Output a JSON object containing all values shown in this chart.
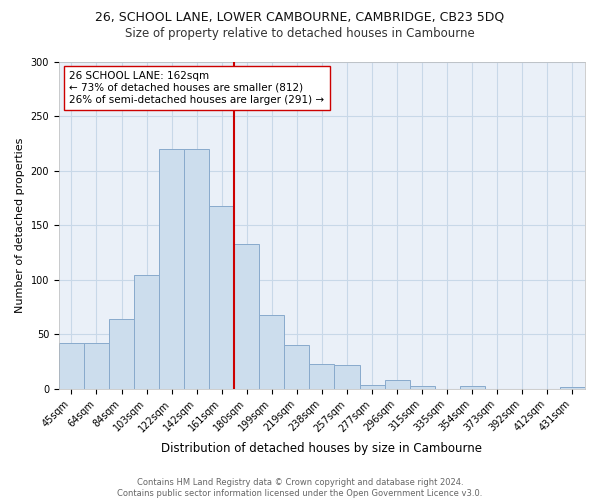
{
  "title1": "26, SCHOOL LANE, LOWER CAMBOURNE, CAMBRIDGE, CB23 5DQ",
  "title2": "Size of property relative to detached houses in Cambourne",
  "xlabel": "Distribution of detached houses by size in Cambourne",
  "ylabel": "Number of detached properties",
  "categories": [
    "45sqm",
    "64sqm",
    "84sqm",
    "103sqm",
    "122sqm",
    "142sqm",
    "161sqm",
    "180sqm",
    "199sqm",
    "219sqm",
    "238sqm",
    "257sqm",
    "277sqm",
    "296sqm",
    "315sqm",
    "335sqm",
    "354sqm",
    "373sqm",
    "392sqm",
    "412sqm",
    "431sqm"
  ],
  "values": [
    42,
    42,
    64,
    104,
    220,
    220,
    168,
    133,
    68,
    40,
    23,
    22,
    4,
    8,
    3,
    0,
    3,
    0,
    0,
    0,
    2
  ],
  "bar_color": "#ccdded",
  "bar_edge_color": "#88aacc",
  "ref_line_color": "#cc0000",
  "annotation_text": "26 SCHOOL LANE: 162sqm\n← 73% of detached houses are smaller (812)\n26% of semi-detached houses are larger (291) →",
  "annotation_box_color": "#ffffff",
  "annotation_box_edge_color": "#cc0000",
  "ylim": [
    0,
    300
  ],
  "yticks": [
    0,
    50,
    100,
    150,
    200,
    250,
    300
  ],
  "footnote": "Contains HM Land Registry data © Crown copyright and database right 2024.\nContains public sector information licensed under the Open Government Licence v3.0.",
  "grid_color": "#c8d8e8",
  "background_color": "#eaf0f8",
  "title1_fontsize": 9,
  "title2_fontsize": 8.5,
  "xlabel_fontsize": 8.5,
  "ylabel_fontsize": 8,
  "tick_fontsize": 7,
  "footnote_fontsize": 6,
  "annotation_fontsize": 7.5,
  "ref_line_x": 6.5
}
